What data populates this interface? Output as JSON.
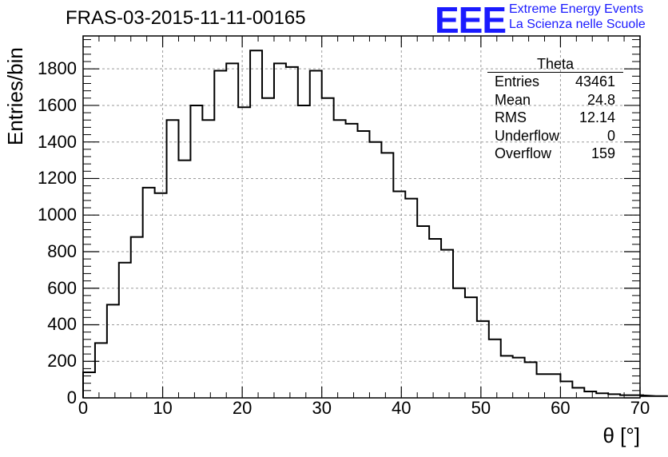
{
  "title": "FRAS-03-2015-11-11-00165",
  "logo": {
    "text": "EEE",
    "line1": "Extreme Energy Events",
    "line2": "La Scienza nelle Scuole",
    "color": "#1a1aff"
  },
  "stats": {
    "title": "Theta",
    "rows": [
      {
        "label": "Entries",
        "value": "43461"
      },
      {
        "label": "Mean",
        "value": "24.8"
      },
      {
        "label": "RMS",
        "value": "12.14"
      },
      {
        "label": "Underflow",
        "value": "0"
      },
      {
        "label": "Overflow",
        "value": "159"
      }
    ]
  },
  "chart_data": {
    "type": "bar",
    "title": "FRAS-03-2015-11-11-00165",
    "xlabel": "θ [°]",
    "ylabel": "Entries/bin",
    "xlim": [
      0,
      70
    ],
    "ylim": [
      0,
      1980
    ],
    "bin_width": 1.5,
    "x_ticks": [
      0,
      10,
      20,
      30,
      40,
      50,
      60,
      70
    ],
    "y_ticks": [
      0,
      200,
      400,
      600,
      800,
      1000,
      1200,
      1400,
      1600,
      1800
    ],
    "grid": true,
    "values": [
      140,
      300,
      510,
      740,
      880,
      1150,
      1120,
      1520,
      1300,
      1600,
      1520,
      1790,
      1830,
      1590,
      1900,
      1640,
      1830,
      1810,
      1600,
      1790,
      1640,
      1520,
      1500,
      1460,
      1400,
      1340,
      1130,
      1090,
      940,
      870,
      810,
      600,
      550,
      420,
      320,
      230,
      220,
      195,
      130,
      130,
      90,
      55,
      35,
      25,
      20,
      15,
      15,
      15,
      10,
      10
    ]
  }
}
